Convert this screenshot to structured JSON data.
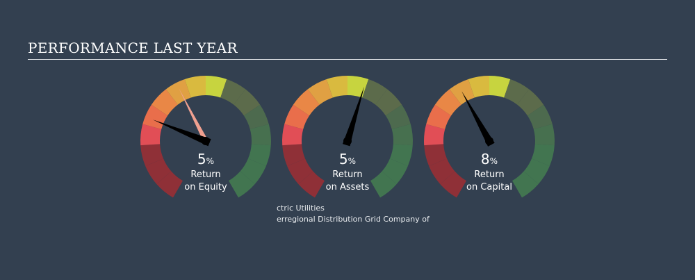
{
  "header": {
    "title": "PERFORMANCE LAST YEAR"
  },
  "chart_data": {
    "type": "gauge",
    "title": "PERFORMANCE LAST YEAR",
    "gauges": [
      {
        "name": "equity",
        "value": "5",
        "unit": "%",
        "label_line1": "Return",
        "label_line2": "on Equity",
        "company_needle_angle": 292,
        "industry_needle_angle": 333,
        "industry_needle_color": "#f0a090"
      },
      {
        "name": "assets",
        "value": "5",
        "unit": "%",
        "label_line1": "Return",
        "label_line2": "on Assets",
        "company_needle_angle": 17,
        "industry_needle_angle": null,
        "industry_needle_color": null
      },
      {
        "name": "capital",
        "value": "8",
        "unit": "%",
        "label_line1": "Return",
        "label_line2": "on Capital",
        "company_needle_angle": 331,
        "industry_needle_angle": null,
        "industry_needle_color": null
      }
    ],
    "legend": {
      "industry_line": "ctric Utilities",
      "company_line": "erregional Distribution Grid Company of"
    }
  },
  "colors": {
    "background": "#334050",
    "scale": [
      "#8f3037",
      "#8f3037",
      "#8f3037",
      "#e14e56",
      "#e96e4b",
      "#e98746",
      "#e0a043",
      "#d9ba3f",
      "#c7d43f",
      "#5c6b4b",
      "#5c6b4b",
      "#4d6a4e",
      "#47704f",
      "#427550",
      "#427550",
      "#427550"
    ],
    "needle": "#000000"
  }
}
